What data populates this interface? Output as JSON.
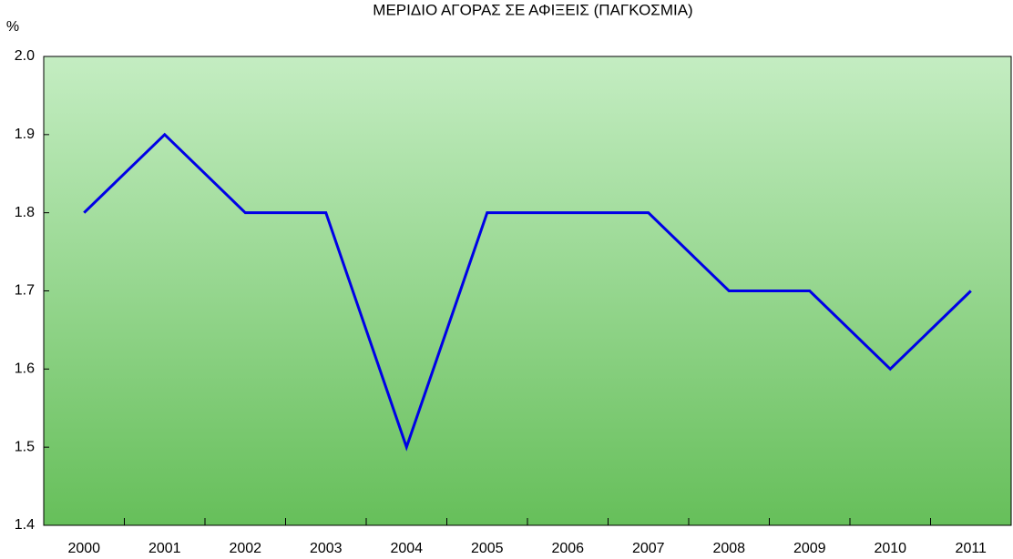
{
  "chart_data": {
    "type": "line",
    "title": "ΜΕΡΙΔΙΟ ΑΓΟΡΑΣ ΣΕ ΑΦΙΞΕΙΣ (ΠΑΓΚΟΣΜΙΑ)",
    "y_label": "%",
    "categories": [
      "2000",
      "2001",
      "2002",
      "2003",
      "2004",
      "2005",
      "2006",
      "2007",
      "2008",
      "2009",
      "2010",
      "2011"
    ],
    "values": [
      1.8,
      1.9,
      1.8,
      1.8,
      1.5,
      1.8,
      1.8,
      1.8,
      1.7,
      1.7,
      1.6,
      1.7
    ],
    "color": "#0000e6",
    "ylim": [
      1.4,
      2.0
    ],
    "yticks": [
      1.4,
      1.5,
      1.6,
      1.7,
      1.8,
      1.9,
      {
        "value": 2.0,
        "label": "2.0"
      }
    ],
    "grid": false
  }
}
